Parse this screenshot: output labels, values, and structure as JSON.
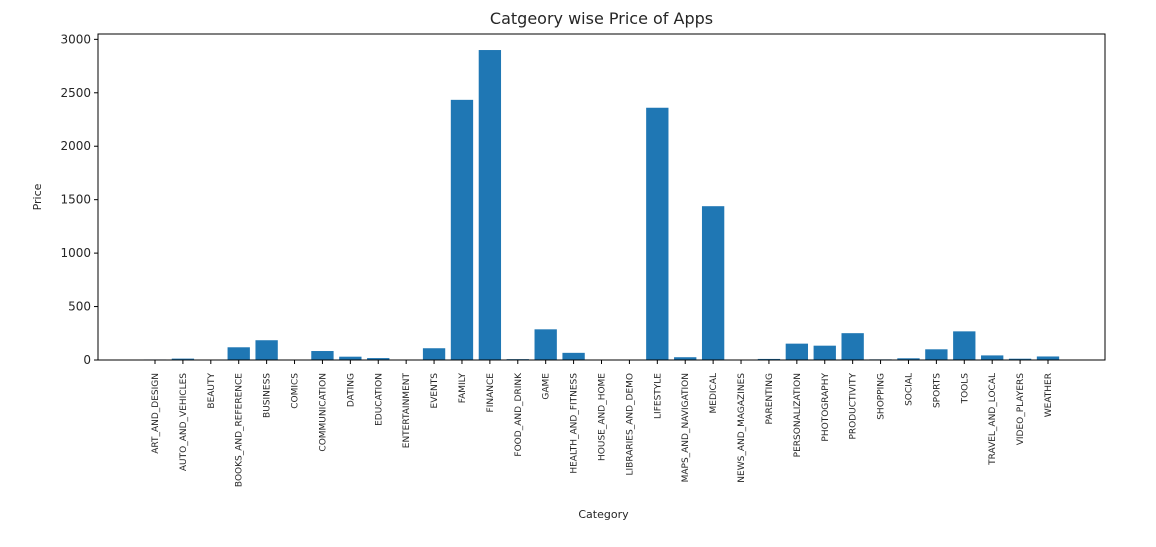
{
  "chart_data": {
    "type": "bar",
    "title": "Catgeory wise Price of Apps",
    "xlabel": "Category",
    "ylabel": "Price",
    "ylim": [
      0,
      3050
    ],
    "yticks": [
      0,
      500,
      1000,
      1500,
      2000,
      2500,
      3000
    ],
    "grid": false,
    "bar_color": "#1f77b4",
    "categories": [
      "ART_AND_DESIGN",
      "AUTO_AND_VEHICLES",
      "BEAUTY",
      "BOOKS_AND_REFERENCE",
      "BUSINESS",
      "COMICS",
      "COMMUNICATION",
      "DATING",
      "EDUCATION",
      "ENTERTAINMENT",
      "EVENTS",
      "FAMILY",
      "FINANCE",
      "FOOD_AND_DRINK",
      "GAME",
      "HEALTH_AND_FITNESS",
      "HOUSE_AND_HOME",
      "LIBRARIES_AND_DEMO",
      "LIFESTYLE",
      "MAPS_AND_NAVIGATION",
      "MEDICAL",
      "NEWS_AND_MAGAZINES",
      "PARENTING",
      "PERSONALIZATION",
      "PHOTOGRAPHY",
      "PRODUCTIVITY",
      "SHOPPING",
      "SOCIAL",
      "SPORTS",
      "TOOLS",
      "TRAVEL_AND_LOCAL",
      "VIDEO_PLAYERS",
      "WEATHER"
    ],
    "values": [
      5,
      13,
      0,
      119,
      185,
      0,
      84,
      31,
      18,
      0,
      110,
      2434,
      2900,
      8,
      287,
      67,
      0,
      0,
      2360,
      26,
      1439,
      3,
      10,
      153,
      134,
      251,
      6,
      16,
      100,
      268,
      43,
      12,
      33
    ]
  }
}
